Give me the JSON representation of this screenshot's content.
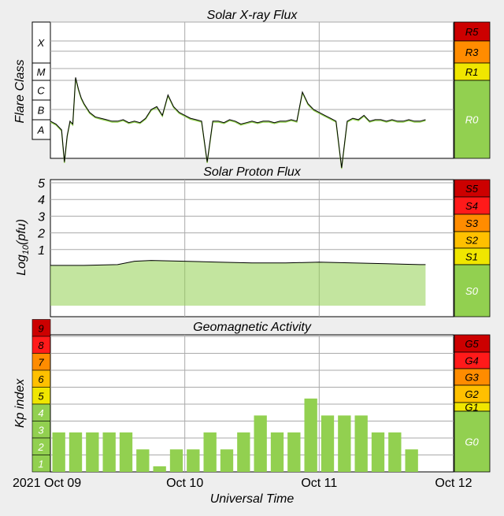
{
  "xray": {
    "title": "Solar X-ray Flux",
    "ylabel": "Flare Class",
    "classes": [
      "X",
      "M",
      "C",
      "B",
      "A"
    ],
    "scale": [
      {
        "label": "R5",
        "color": "#cc0000"
      },
      {
        "label": "R3",
        "color": "#ff8c00"
      },
      {
        "label": "R1",
        "color": "#f0e600"
      },
      {
        "label": "R0",
        "color": "#92d050"
      }
    ]
  },
  "proton": {
    "title": "Solar Proton Flux",
    "ylabel": "Log10(pfu)",
    "ylabel_main": "Log",
    "ylabel_sub": "10",
    "ylabel_tail": "(pfu)",
    "ticks": [
      "5",
      "4",
      "3",
      "2",
      "1"
    ],
    "scale": [
      {
        "label": "S5",
        "color": "#cc0000"
      },
      {
        "label": "S4",
        "color": "#ff1a1a"
      },
      {
        "label": "S3",
        "color": "#ff8c00"
      },
      {
        "label": "S2",
        "color": "#ffc000"
      },
      {
        "label": "S1",
        "color": "#f0e600"
      },
      {
        "label": "S0",
        "color": "#92d050"
      }
    ]
  },
  "geomag": {
    "title": "Geomagnetic Activity",
    "ylabel": "Kp index",
    "kp_levels": [
      {
        "label": "9",
        "color": "#cc0000"
      },
      {
        "label": "8",
        "color": "#ff1a1a"
      },
      {
        "label": "7",
        "color": "#ff8c00"
      },
      {
        "label": "6",
        "color": "#ffc000"
      },
      {
        "label": "5",
        "color": "#f0e600"
      },
      {
        "label": "4",
        "color": "#92d050"
      },
      {
        "label": "3",
        "color": "#92d050"
      },
      {
        "label": "2",
        "color": "#92d050"
      },
      {
        "label": "1",
        "color": "#92d050"
      }
    ],
    "scale": [
      {
        "label": "G5",
        "color": "#cc0000"
      },
      {
        "label": "G4",
        "color": "#ff1a1a"
      },
      {
        "label": "G3",
        "color": "#ff8c00"
      },
      {
        "label": "G2",
        "color": "#ffc000"
      },
      {
        "label": "G1",
        "color": "#f0e600"
      },
      {
        "label": "G0",
        "color": "#92d050"
      }
    ]
  },
  "xaxis": {
    "xlabel": "Universal Time",
    "tick_labels": [
      "2021 Oct 09",
      "Oct 10",
      "Oct 11",
      "Oct 12"
    ]
  },
  "colors": {
    "plot_bg": "#ffffff",
    "grid": "#aaaaaa",
    "series_line": "#000000",
    "series_fill": "#92d050"
  },
  "chart_data": [
    {
      "type": "line",
      "title": "Solar X-ray Flux",
      "ylabel": "Flare Class",
      "x_units": "hours since 2021-10-09 00:00 UT",
      "x": [
        0,
        1,
        2,
        2.5,
        3,
        3.5,
        4,
        4.5,
        5,
        5.5,
        6,
        7,
        8,
        9,
        10,
        11,
        12,
        13,
        14,
        15,
        16,
        17,
        18,
        19,
        20,
        21,
        22,
        23,
        24,
        25,
        26,
        27,
        28,
        29,
        30,
        31,
        32,
        33,
        34,
        35,
        36,
        37,
        38,
        39,
        40,
        41,
        42,
        43,
        44,
        45,
        46,
        47,
        48,
        49,
        50,
        51,
        52,
        53,
        54,
        55,
        56,
        57,
        58,
        59,
        60,
        61,
        62,
        63,
        64,
        65,
        66,
        67
      ],
      "y_log10_wm2": [
        -7.4,
        -7.5,
        -7.7,
        -8.8,
        -7.9,
        -7.4,
        -7.5,
        -5.9,
        -6.3,
        -6.6,
        -6.8,
        -7.1,
        -7.25,
        -7.3,
        -7.35,
        -7.4,
        -7.4,
        -7.35,
        -7.45,
        -7.4,
        -7.45,
        -7.3,
        -7.0,
        -6.9,
        -7.2,
        -6.5,
        -6.9,
        -7.1,
        -7.2,
        -7.3,
        -7.35,
        -7.4,
        -8.8,
        -7.4,
        -7.4,
        -7.45,
        -7.35,
        -7.4,
        -7.5,
        -7.45,
        -7.4,
        -7.45,
        -7.4,
        -7.4,
        -7.45,
        -7.4,
        -7.4,
        -7.35,
        -7.4,
        -6.4,
        -6.8,
        -7.0,
        -7.1,
        -7.2,
        -7.3,
        -7.4,
        -9.0,
        -7.4,
        -7.3,
        -7.35,
        -7.2,
        -7.4,
        -7.35,
        -7.35,
        -7.4,
        -7.35,
        -7.4,
        -7.4,
        -7.35,
        -7.4,
        -7.4,
        -7.35
      ]
    },
    {
      "type": "area",
      "title": "Solar Proton Flux",
      "ylabel": "Log10(pfu)",
      "ylim": [
        -1,
        6
      ],
      "x_units": "hours since 2021-10-09 00:00 UT",
      "x": [
        0,
        6,
        12,
        15,
        18,
        24,
        30,
        36,
        42,
        48,
        54,
        60,
        66,
        67
      ],
      "y_log10_pfu": [
        0.05,
        0.05,
        0.1,
        0.3,
        0.35,
        0.3,
        0.25,
        0.2,
        0.2,
        0.25,
        0.2,
        0.15,
        0.1,
        0.1
      ]
    },
    {
      "type": "bar",
      "title": "Geomagnetic Activity",
      "ylabel": "Kp index",
      "ylim": [
        0,
        9
      ],
      "x_units": "3-hour intervals starting 2021-10-09 00:00 UT",
      "values": [
        2.33,
        2.33,
        2.33,
        2.33,
        2.33,
        1.33,
        0.33,
        1.33,
        1.33,
        2.33,
        1.33,
        2.33,
        3.33,
        2.33,
        2.33,
        4.33,
        3.33,
        3.33,
        3.33,
        2.33,
        2.33,
        1.33
      ]
    }
  ]
}
